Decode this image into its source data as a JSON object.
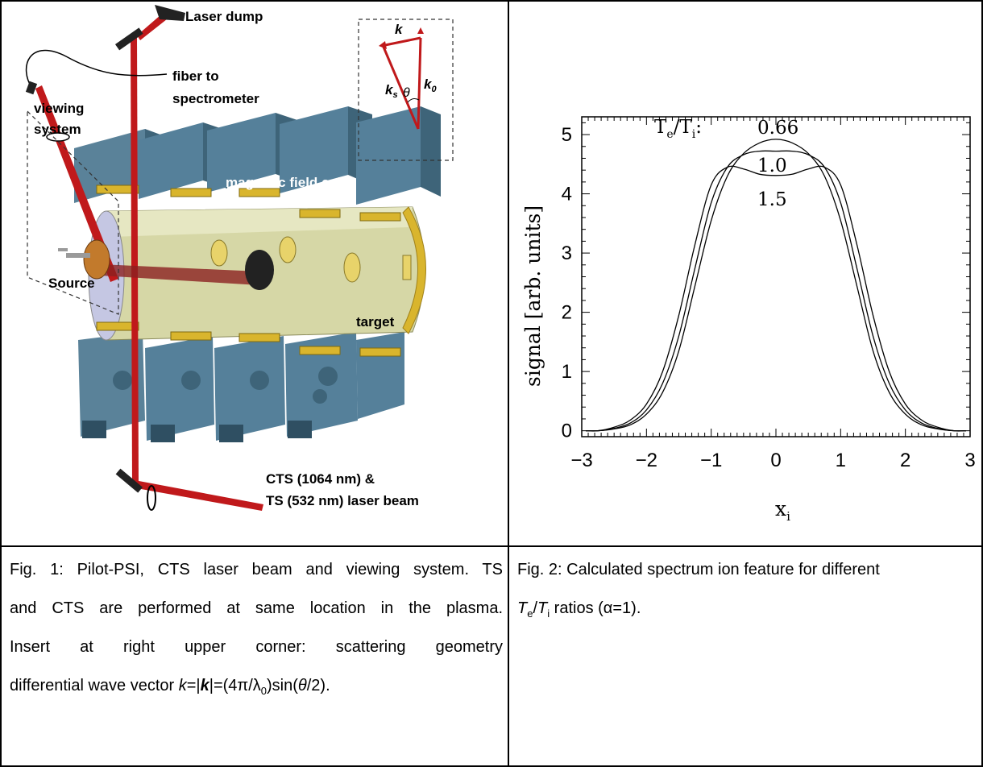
{
  "figure1": {
    "labels": {
      "laser_dump": "Laser dump",
      "fiber": [
        "fiber to",
        "spectrometer"
      ],
      "viewing": [
        "viewing",
        "system"
      ],
      "coils": "magnetic field coils",
      "source": "Source",
      "target": "target",
      "laser_beam": [
        "CTS (1064 nm) &",
        "TS (532 nm) laser beam"
      ]
    },
    "inset": {
      "k": "k",
      "ks": "k",
      "ks_sub": "s",
      "k0": "k",
      "k0_sub": "0",
      "theta": "θ"
    },
    "colors": {
      "laser": "#c0191b",
      "coil_block": "#4f7892",
      "vessel": "#d6d7a6",
      "flange": "#d9b52d"
    }
  },
  "figure2": {
    "chart_data": {
      "type": "line",
      "xlabel": "x",
      "xlabel_sub": "i",
      "ylabel": "signal [arb. units]",
      "xlim": [
        -3,
        3
      ],
      "ylim": [
        -0.1,
        5.3
      ],
      "xticks": [
        -3,
        -2,
        -1,
        0,
        1,
        2,
        3
      ],
      "yticks": [
        0,
        1,
        2,
        3,
        4,
        5
      ],
      "legend_title": "T_e/T_i:",
      "series": [
        {
          "name": "0.66",
          "x": [
            -2.75,
            -2.5,
            -2.25,
            -2.0,
            -1.75,
            -1.5,
            -1.25,
            -1.0,
            -0.75,
            -0.5,
            -0.25,
            0,
            0.25,
            0.5,
            0.75,
            1.0,
            1.25,
            1.5,
            1.75,
            2.0,
            2.25,
            2.5,
            2.75
          ],
          "y": [
            0.0,
            0.03,
            0.1,
            0.28,
            0.65,
            1.35,
            2.45,
            3.55,
            4.3,
            4.68,
            4.86,
            4.92,
            4.86,
            4.68,
            4.3,
            3.55,
            2.45,
            1.35,
            0.65,
            0.28,
            0.1,
            0.03,
            0.0
          ]
        },
        {
          "name": "1.0",
          "x": [
            -2.75,
            -2.5,
            -2.25,
            -2.0,
            -1.75,
            -1.5,
            -1.25,
            -1.0,
            -0.75,
            -0.5,
            -0.25,
            0,
            0.25,
            0.5,
            0.75,
            1.0,
            1.25,
            1.5,
            1.75,
            2.0,
            2.25,
            2.5,
            2.75
          ],
          "y": [
            0.0,
            0.04,
            0.13,
            0.35,
            0.8,
            1.6,
            2.75,
            3.85,
            4.45,
            4.66,
            4.72,
            4.72,
            4.72,
            4.66,
            4.45,
            3.85,
            2.75,
            1.6,
            0.8,
            0.35,
            0.13,
            0.04,
            0.0
          ]
        },
        {
          "name": "1.5",
          "x": [
            -2.75,
            -2.5,
            -2.25,
            -2.0,
            -1.75,
            -1.5,
            -1.25,
            -1.0,
            -0.75,
            -0.5,
            -0.25,
            0,
            0.25,
            0.5,
            0.75,
            1.0,
            1.25,
            1.5,
            1.75,
            2.0,
            2.25,
            2.5,
            2.75
          ],
          "y": [
            0.0,
            0.06,
            0.18,
            0.45,
            1.0,
            1.95,
            3.15,
            4.15,
            4.45,
            4.42,
            4.33,
            4.31,
            4.33,
            4.42,
            4.45,
            4.15,
            3.15,
            1.95,
            1.0,
            0.45,
            0.18,
            0.06,
            0.0
          ]
        }
      ]
    }
  },
  "captions": {
    "fig1": [
      "Fig. 1: Pilot-PSI, CTS laser beam and viewing system. TS",
      "and CTS are performed at same location in the plasma.",
      "Insert at right upper corner: scattering geometry"
    ],
    "fig1_last": {
      "pre": "differential wave vector ",
      "k": "k",
      "mid": "=|",
      "kbold": "k",
      "post": "|=(4π/λ",
      "sub0": "0",
      "tail": ")sin(",
      "theta": "θ",
      "end": "/2)."
    },
    "fig2_line1": "Fig. 2: Calculated spectrum ion feature for different",
    "fig2_line2": {
      "Te": "T",
      "e_sub": "e",
      "slash": "/",
      "Ti": "T",
      "i_sub": "i",
      "rest": " ratios (α=1)."
    }
  }
}
